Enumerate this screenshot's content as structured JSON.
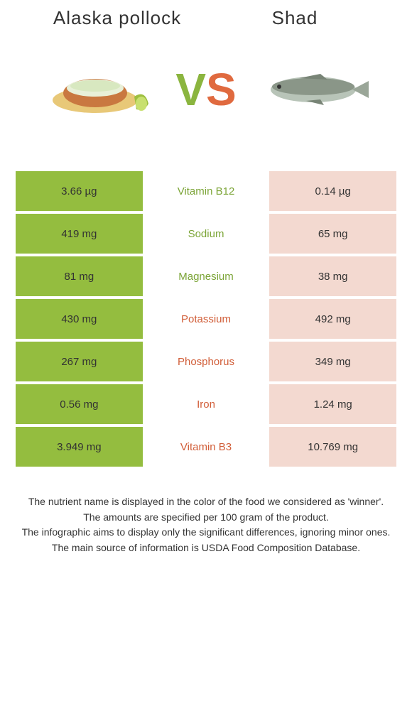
{
  "header": {
    "left_title": "Alaska pollock",
    "right_title": "Shad"
  },
  "vs": {
    "v": "V",
    "s": "S"
  },
  "colors": {
    "left_bg": "#94bd3f",
    "right_bg": "#f3d9d0",
    "left_text": "#7ba436",
    "right_text": "#d15e39",
    "row_text": "#333333"
  },
  "table": {
    "rows": [
      {
        "left": "3.66 µg",
        "label": "Vitamin B12",
        "right": "0.14 µg",
        "winner": "left"
      },
      {
        "left": "419 mg",
        "label": "Sodium",
        "right": "65 mg",
        "winner": "left"
      },
      {
        "left": "81 mg",
        "label": "Magnesium",
        "right": "38 mg",
        "winner": "left"
      },
      {
        "left": "430 mg",
        "label": "Potassium",
        "right": "492 mg",
        "winner": "right"
      },
      {
        "left": "267 mg",
        "label": "Phosphorus",
        "right": "349 mg",
        "winner": "right"
      },
      {
        "left": "0.56 mg",
        "label": "Iron",
        "right": "1.24 mg",
        "winner": "right"
      },
      {
        "left": "3.949 mg",
        "label": "Vitamin B3",
        "right": "10.769 mg",
        "winner": "right"
      }
    ]
  },
  "footer": {
    "line1": "The nutrient name is displayed in the color of the food we considered as 'winner'.",
    "line2": "The amounts are specified per 100 gram of the product.",
    "line3": "The infographic aims to display only the significant differences, ignoring minor ones.",
    "line4": "The main source of information is USDA Food Composition Database."
  }
}
